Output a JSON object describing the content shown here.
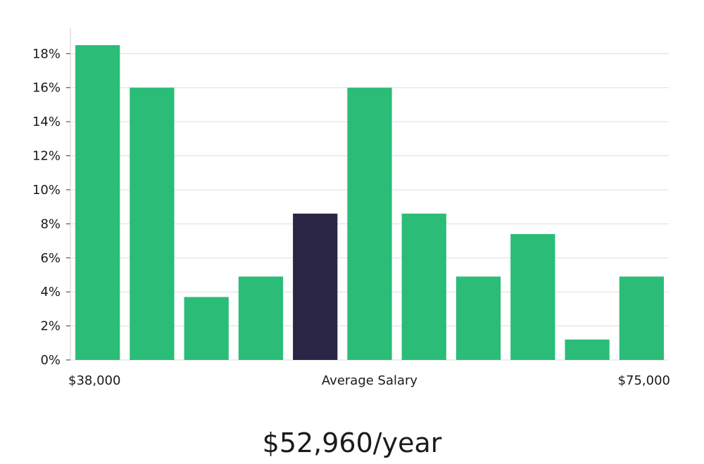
{
  "chart_data": {
    "type": "bar",
    "values": [
      18.5,
      16,
      3.7,
      4.9,
      8.6,
      16,
      8.6,
      4.9,
      7.4,
      1.2,
      4.9
    ],
    "highlight_index": 4,
    "ylim": [
      0,
      19.5
    ],
    "y_ticks": [
      0,
      2,
      4,
      6,
      8,
      10,
      12,
      14,
      16,
      18
    ],
    "y_tick_labels": [
      "0%",
      "2%",
      "4%",
      "6%",
      "8%",
      "10%",
      "12%",
      "14%",
      "16%",
      "18%"
    ],
    "x_labels": {
      "min": "$38,000",
      "center": "Average Salary",
      "max": "$75,000"
    },
    "grid": true,
    "colors": {
      "bar": "#2bbd77",
      "highlight": "#2a2545",
      "grid": "#dddddd",
      "axis": "#cccccc"
    }
  },
  "salary": {
    "value": "$52,960/year"
  }
}
